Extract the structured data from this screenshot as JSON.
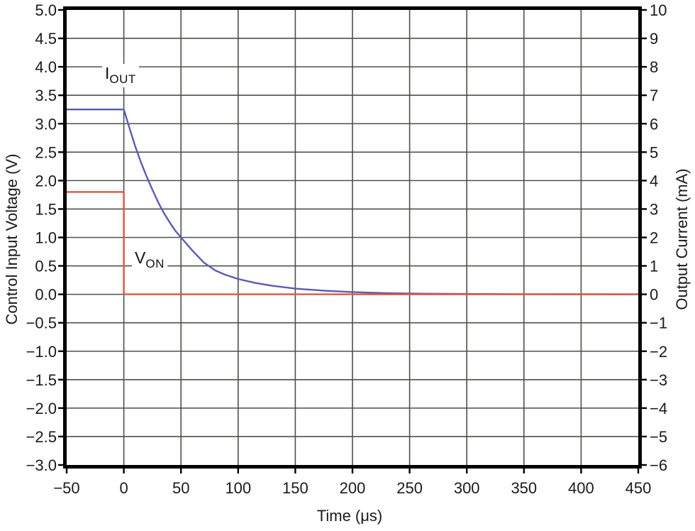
{
  "chart_data": {
    "type": "line",
    "title": "",
    "xlabel": "Time (μs)",
    "ylabel_left": "Control Input Voltage (V)",
    "ylabel_right": "Output Current (mA)",
    "xlim": [
      -50,
      450
    ],
    "ylim_left": [
      -3.0,
      5.0
    ],
    "ylim_right": [
      -6,
      10
    ],
    "grid": true,
    "colors": {
      "grid": "#4a524a",
      "border": "#000000",
      "tick_text": "#1a1a1a",
      "iout_line": "#5b5bb2",
      "von_line": "#d95740"
    },
    "xticks": {
      "values": [
        -50,
        0,
        50,
        100,
        150,
        200,
        250,
        300,
        350,
        400,
        450
      ],
      "labels": [
        "−50",
        "0",
        "50",
        "100",
        "150",
        "200",
        "250",
        "300",
        "350",
        "400",
        "450"
      ]
    },
    "yticks_left": {
      "values": [
        5.0,
        4.5,
        4.0,
        3.5,
        3.0,
        2.5,
        2.0,
        1.5,
        1.0,
        0.5,
        0.0,
        -0.5,
        -1.0,
        -1.5,
        -2.0,
        -2.5,
        -3.0
      ],
      "labels": [
        "5.0",
        "4.5",
        "4.0",
        "3.5",
        "3.0",
        "2.5",
        "2.0",
        "1.5",
        "1.0",
        "0.5",
        "0.0",
        "−0.5",
        "−1.0",
        "−1.5",
        "−2.0",
        "−2.5",
        "−3.0"
      ]
    },
    "yticks_right": {
      "values": [
        10,
        9,
        8,
        7,
        6,
        5,
        4,
        3,
        2,
        1,
        0,
        -1,
        -2,
        -3,
        -4,
        -5,
        -6
      ],
      "labels": [
        "10",
        "9",
        "8",
        "7",
        "6",
        "5",
        "4",
        "3",
        "2",
        "1",
        "0",
        "−1",
        "−2",
        "−3",
        "−4",
        "−5",
        "−6"
      ]
    },
    "series": [
      {
        "name": "IOUT",
        "label_main": "I",
        "label_sub": "OUT",
        "axis": "left",
        "flat_level_V": 3.25,
        "flat_level_mA": 6.5,
        "points": [
          [
            -50,
            3.25
          ],
          [
            0,
            3.25
          ],
          [
            5,
            2.92
          ],
          [
            10,
            2.6
          ],
          [
            15,
            2.32
          ],
          [
            20,
            2.07
          ],
          [
            25,
            1.84
          ],
          [
            30,
            1.62
          ],
          [
            35,
            1.43
          ],
          [
            40,
            1.27
          ],
          [
            45,
            1.12
          ],
          [
            50,
            1.0
          ],
          [
            60,
            0.77
          ],
          [
            70,
            0.56
          ],
          [
            80,
            0.42
          ],
          [
            88,
            0.35
          ],
          [
            100,
            0.27
          ],
          [
            115,
            0.2
          ],
          [
            130,
            0.15
          ],
          [
            150,
            0.1
          ],
          [
            175,
            0.065
          ],
          [
            200,
            0.04
          ],
          [
            230,
            0.02
          ],
          [
            260,
            0.012
          ],
          [
            300,
            0.006
          ],
          [
            350,
            0.003
          ],
          [
            450,
            0.0
          ]
        ]
      },
      {
        "name": "VON",
        "label_main": "V",
        "label_sub": "ON",
        "axis": "left",
        "on_level_V": 1.8,
        "off_level_V": 0.0,
        "points": [
          [
            -50,
            1.8
          ],
          [
            0,
            1.8
          ],
          [
            0,
            0.0
          ],
          [
            450,
            0.0
          ]
        ]
      }
    ]
  }
}
